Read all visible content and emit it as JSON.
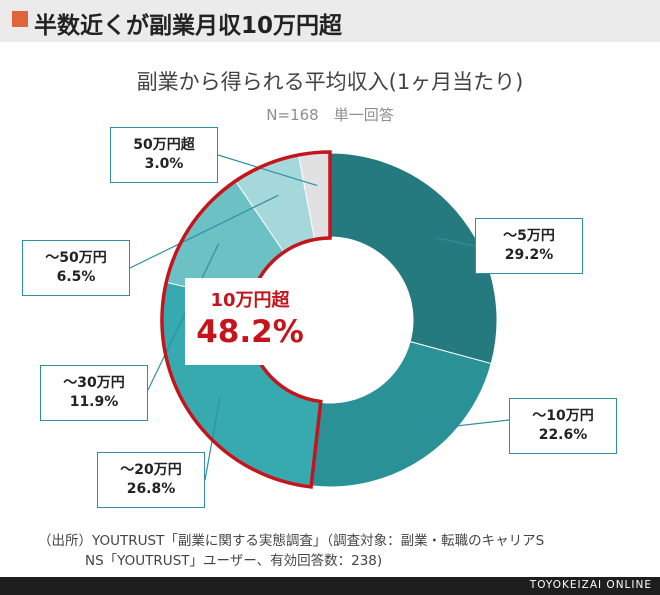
{
  "header": {
    "title": "半数近くが副業月収10万円超",
    "marker_color": "#e0653a"
  },
  "chart_data": {
    "type": "pie",
    "variant": "donut",
    "title": "副業から得られる平均収入(1ヶ月当たり)",
    "subtitle": "N=168　単一回答",
    "slices": [
      {
        "label": "〜5万円",
        "value": 29.2,
        "value_label": "29.2%",
        "color": "#247a7e"
      },
      {
        "label": "〜10万円",
        "value": 22.6,
        "value_label": "22.6%",
        "color": "#2a9196"
      },
      {
        "label": "〜20万円",
        "value": 26.8,
        "value_label": "26.8%",
        "color": "#37aab0"
      },
      {
        "label": "〜30万円",
        "value": 11.9,
        "value_label": "11.9%",
        "color": "#6cc1c5"
      },
      {
        "label": "〜50万円",
        "value": 6.5,
        "value_label": "6.5%",
        "color": "#a5d8da"
      },
      {
        "label": "50万円超",
        "value": 3.0,
        "value_label": "3.0%",
        "color": "#e1e1e1"
      }
    ],
    "highlight": {
      "label": "10万円超",
      "value": "48.2%",
      "color": "#c5141b",
      "covers": [
        "〜20万円",
        "〜30万円",
        "〜50万円",
        "50万円超"
      ]
    }
  },
  "source": {
    "line1": "（出所）YOUTRUST「副業に関する実態調査」（調査対象：副業・転職のキャリアS",
    "line2": "NS「YOUTRUST」ユーザー、有効回答数：238)"
  },
  "footer": {
    "brand": "TOYOKEIZAI ONLINE"
  }
}
